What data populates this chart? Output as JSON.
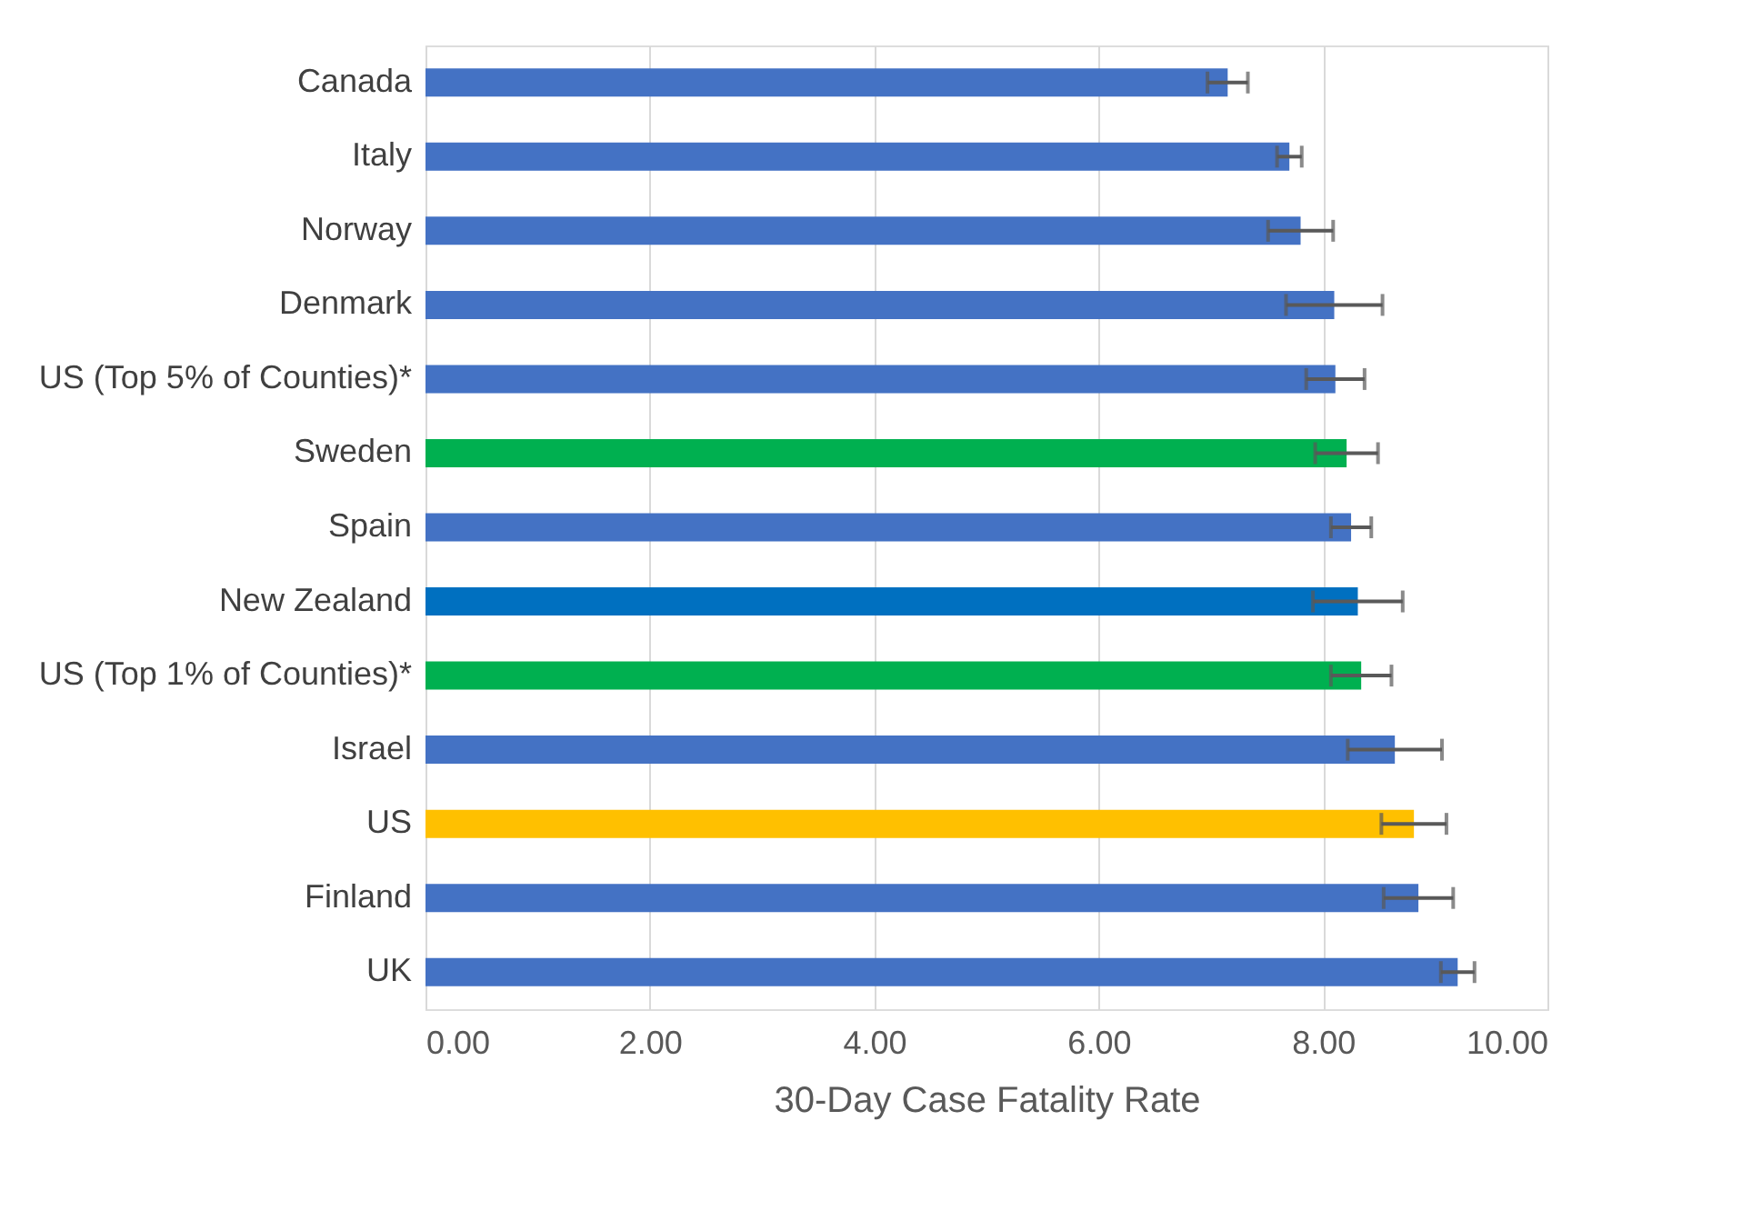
{
  "chart_data": {
    "type": "bar",
    "orientation": "horizontal",
    "xlabel": "30-Day Case Fatality Rate",
    "categories": [
      "Canada",
      "Italy",
      "Norway",
      "Denmark",
      "US (Top 5% of Counties)*",
      "Sweden",
      "Spain",
      "New Zealand",
      "US (Top 1% of Counties)*",
      "Israel",
      "US",
      "Finland",
      "UK"
    ],
    "values": [
      7.15,
      7.7,
      7.8,
      8.1,
      8.11,
      8.21,
      8.25,
      8.31,
      8.34,
      8.64,
      8.81,
      8.85,
      9.2
    ],
    "errors": [
      0.18,
      0.11,
      0.29,
      0.43,
      0.26,
      0.28,
      0.18,
      0.4,
      0.27,
      0.42,
      0.29,
      0.31,
      0.15
    ],
    "colors": [
      "#4472c4",
      "#4472c4",
      "#4472c4",
      "#4472c4",
      "#4472c4",
      "#00b050",
      "#4472c4",
      "#0070c0",
      "#00b050",
      "#4472c4",
      "#ffc000",
      "#4472c4",
      "#4472c4"
    ],
    "xlim": [
      0,
      10
    ],
    "xticks": [
      {
        "value": 0,
        "label": "0.00"
      },
      {
        "value": 2,
        "label": "2.00"
      },
      {
        "value": 4,
        "label": "4.00"
      },
      {
        "value": 6,
        "label": "6.00"
      },
      {
        "value": 8,
        "label": "8.00"
      },
      {
        "value": 10,
        "label": "10.00"
      }
    ],
    "grid": "x"
  }
}
